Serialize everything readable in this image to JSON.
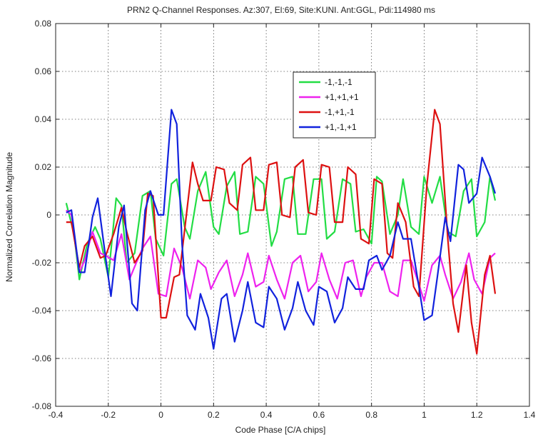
{
  "chart_data": {
    "type": "line",
    "title": "PRN2 Q-Channel Responses. Az:307, El:69, Site:KUNI. Ant:GGL, Pdi:114980 ms",
    "xlabel": "Code Phase [C/A chips]",
    "ylabel": "Normalized Correlation Magnitude",
    "xlim": [
      -0.4,
      1.4
    ],
    "ylim": [
      -0.08,
      0.08
    ],
    "xticks": [
      -0.4,
      -0.2,
      0,
      0.2,
      0.4,
      0.6,
      0.8,
      1,
      1.2,
      1.4
    ],
    "yticks": [
      -0.08,
      -0.06,
      -0.04,
      -0.02,
      0,
      0.02,
      0.04,
      0.06,
      0.08
    ],
    "xtick_labels": [
      "-0.4",
      "-0.2",
      "0",
      "0.2",
      "0.4",
      "0.6",
      "0.8",
      "1",
      "1.2",
      "1.4"
    ],
    "ytick_labels": [
      "-0.08",
      "-0.06",
      "-0.04",
      "-0.02",
      "0",
      "0.02",
      "0.04",
      "0.06",
      "0.08"
    ],
    "grid": true,
    "legend_position": "upper-center",
    "series": [
      {
        "name": "-1,-1,-1",
        "color": "#22dd44",
        "points": [
          [
            -0.36,
            0.005
          ],
          [
            -0.33,
            -0.008
          ],
          [
            -0.31,
            -0.027
          ],
          [
            -0.28,
            -0.012
          ],
          [
            -0.25,
            -0.005
          ],
          [
            -0.23,
            -0.01
          ],
          [
            -0.2,
            -0.026
          ],
          [
            -0.17,
            0.007
          ],
          [
            -0.15,
            0.004
          ],
          [
            -0.13,
            -0.02
          ],
          [
            -0.1,
            -0.016
          ],
          [
            -0.07,
            0.008
          ],
          [
            -0.04,
            0.01
          ],
          [
            -0.02,
            -0.01
          ],
          [
            0.01,
            -0.017
          ],
          [
            0.04,
            0.013
          ],
          [
            0.06,
            0.015
          ],
          [
            0.09,
            -0.005
          ],
          [
            0.11,
            -0.01
          ],
          [
            0.14,
            0.01
          ],
          [
            0.17,
            0.018
          ],
          [
            0.2,
            -0.005
          ],
          [
            0.22,
            -0.008
          ],
          [
            0.25,
            0.012
          ],
          [
            0.28,
            0.018
          ],
          [
            0.3,
            -0.008
          ],
          [
            0.33,
            -0.007
          ],
          [
            0.36,
            0.016
          ],
          [
            0.39,
            0.013
          ],
          [
            0.42,
            -0.013
          ],
          [
            0.44,
            -0.007
          ],
          [
            0.47,
            0.015
          ],
          [
            0.5,
            0.016
          ],
          [
            0.52,
            -0.008
          ],
          [
            0.55,
            -0.008
          ],
          [
            0.58,
            0.015
          ],
          [
            0.61,
            0.015
          ],
          [
            0.63,
            -0.01
          ],
          [
            0.66,
            -0.007
          ],
          [
            0.69,
            0.015
          ],
          [
            0.72,
            0.013
          ],
          [
            0.74,
            -0.007
          ],
          [
            0.77,
            -0.006
          ],
          [
            0.8,
            -0.012
          ],
          [
            0.82,
            0.016
          ],
          [
            0.84,
            0.014
          ],
          [
            0.87,
            -0.008
          ],
          [
            0.9,
            0.0
          ],
          [
            0.92,
            0.015
          ],
          [
            0.95,
            -0.005
          ],
          [
            0.98,
            -0.008
          ],
          [
            1.0,
            0.016
          ],
          [
            1.03,
            0.005
          ],
          [
            1.06,
            0.016
          ],
          [
            1.09,
            -0.007
          ],
          [
            1.12,
            -0.009
          ],
          [
            1.15,
            0.01
          ],
          [
            1.18,
            0.015
          ],
          [
            1.2,
            -0.009
          ],
          [
            1.23,
            -0.003
          ],
          [
            1.25,
            0.016
          ],
          [
            1.27,
            0.006
          ]
        ]
      },
      {
        "name": "+1,+1,+1",
        "color": "#ee22ee",
        "points": [
          [
            -0.36,
            0.002
          ],
          [
            -0.34,
            0.0
          ],
          [
            -0.31,
            -0.024
          ],
          [
            -0.29,
            -0.019
          ],
          [
            -0.26,
            -0.007
          ],
          [
            -0.23,
            -0.016
          ],
          [
            -0.21,
            -0.017
          ],
          [
            -0.18,
            -0.019
          ],
          [
            -0.15,
            -0.008
          ],
          [
            -0.12,
            -0.027
          ],
          [
            -0.09,
            -0.019
          ],
          [
            -0.07,
            -0.014
          ],
          [
            -0.04,
            -0.009
          ],
          [
            -0.01,
            -0.033
          ],
          [
            0.02,
            -0.034
          ],
          [
            0.05,
            -0.014
          ],
          [
            0.08,
            -0.022
          ],
          [
            0.11,
            -0.035
          ],
          [
            0.14,
            -0.019
          ],
          [
            0.17,
            -0.022
          ],
          [
            0.19,
            -0.031
          ],
          [
            0.22,
            -0.024
          ],
          [
            0.25,
            -0.019
          ],
          [
            0.28,
            -0.034
          ],
          [
            0.31,
            -0.025
          ],
          [
            0.33,
            -0.016
          ],
          [
            0.36,
            -0.03
          ],
          [
            0.39,
            -0.028
          ],
          [
            0.41,
            -0.017
          ],
          [
            0.44,
            -0.027
          ],
          [
            0.47,
            -0.035
          ],
          [
            0.5,
            -0.02
          ],
          [
            0.53,
            -0.017
          ],
          [
            0.56,
            -0.032
          ],
          [
            0.59,
            -0.028
          ],
          [
            0.61,
            -0.016
          ],
          [
            0.64,
            -0.027
          ],
          [
            0.67,
            -0.035
          ],
          [
            0.7,
            -0.02
          ],
          [
            0.73,
            -0.019
          ],
          [
            0.76,
            -0.034
          ],
          [
            0.78,
            -0.026
          ],
          [
            0.81,
            -0.02
          ],
          [
            0.84,
            -0.02
          ],
          [
            0.87,
            -0.032
          ],
          [
            0.9,
            -0.034
          ],
          [
            0.92,
            -0.019
          ],
          [
            0.95,
            -0.019
          ],
          [
            0.98,
            -0.029
          ],
          [
            1.0,
            -0.036
          ],
          [
            1.03,
            -0.021
          ],
          [
            1.06,
            -0.017
          ],
          [
            1.08,
            -0.025
          ],
          [
            1.11,
            -0.035
          ],
          [
            1.14,
            -0.028
          ],
          [
            1.17,
            -0.016
          ],
          [
            1.19,
            -0.027
          ],
          [
            1.22,
            -0.033
          ],
          [
            1.25,
            -0.018
          ],
          [
            1.27,
            -0.016
          ]
        ]
      },
      {
        "name": "-1,+1,-1",
        "color": "#dd1111",
        "points": [
          [
            -0.36,
            -0.003
          ],
          [
            -0.34,
            -0.003
          ],
          [
            -0.31,
            -0.022
          ],
          [
            -0.29,
            -0.013
          ],
          [
            -0.26,
            -0.009
          ],
          [
            -0.23,
            -0.018
          ],
          [
            -0.21,
            -0.017
          ],
          [
            -0.18,
            -0.008
          ],
          [
            -0.15,
            0.003
          ],
          [
            -0.13,
            -0.007
          ],
          [
            -0.1,
            -0.02
          ],
          [
            -0.07,
            -0.015
          ],
          [
            -0.05,
            0.009
          ],
          [
            -0.03,
            0.008
          ],
          [
            0.0,
            -0.043
          ],
          [
            0.02,
            -0.043
          ],
          [
            0.05,
            -0.026
          ],
          [
            0.07,
            -0.025
          ],
          [
            0.1,
            0.003
          ],
          [
            0.12,
            0.022
          ],
          [
            0.14,
            0.013
          ],
          [
            0.16,
            0.006
          ],
          [
            0.19,
            0.006
          ],
          [
            0.21,
            0.02
          ],
          [
            0.24,
            0.019
          ],
          [
            0.26,
            0.005
          ],
          [
            0.29,
            0.002
          ],
          [
            0.31,
            0.021
          ],
          [
            0.34,
            0.024
          ],
          [
            0.36,
            0.002
          ],
          [
            0.39,
            0.002
          ],
          [
            0.41,
            0.021
          ],
          [
            0.44,
            0.022
          ],
          [
            0.46,
            0.0
          ],
          [
            0.49,
            -0.001
          ],
          [
            0.51,
            0.02
          ],
          [
            0.54,
            0.023
          ],
          [
            0.56,
            0.001
          ],
          [
            0.59,
            0.0
          ],
          [
            0.61,
            0.021
          ],
          [
            0.64,
            0.02
          ],
          [
            0.66,
            -0.003
          ],
          [
            0.69,
            -0.003
          ],
          [
            0.71,
            0.02
          ],
          [
            0.74,
            0.017
          ],
          [
            0.76,
            -0.01
          ],
          [
            0.79,
            -0.012
          ],
          [
            0.81,
            0.015
          ],
          [
            0.84,
            0.013
          ],
          [
            0.86,
            -0.016
          ],
          [
            0.88,
            -0.018
          ],
          [
            0.9,
            0.005
          ],
          [
            0.93,
            -0.003
          ],
          [
            0.96,
            -0.03
          ],
          [
            0.98,
            -0.034
          ],
          [
            1.01,
            0.012
          ],
          [
            1.04,
            0.044
          ],
          [
            1.06,
            0.038
          ],
          [
            1.09,
            -0.01
          ],
          [
            1.11,
            -0.037
          ],
          [
            1.13,
            -0.049
          ],
          [
            1.16,
            -0.021
          ],
          [
            1.18,
            -0.045
          ],
          [
            1.2,
            -0.058
          ],
          [
            1.23,
            -0.025
          ],
          [
            1.25,
            -0.017
          ],
          [
            1.27,
            -0.033
          ]
        ]
      },
      {
        "name": "+1,-1,+1",
        "color": "#1122dd",
        "points": [
          [
            -0.36,
            0.001
          ],
          [
            -0.34,
            0.002
          ],
          [
            -0.31,
            -0.024
          ],
          [
            -0.29,
            -0.024
          ],
          [
            -0.26,
            -0.001
          ],
          [
            -0.24,
            0.007
          ],
          [
            -0.21,
            -0.018
          ],
          [
            -0.19,
            -0.034
          ],
          [
            -0.16,
            -0.005
          ],
          [
            -0.14,
            0.004
          ],
          [
            -0.11,
            -0.037
          ],
          [
            -0.09,
            -0.04
          ],
          [
            -0.06,
            0.002
          ],
          [
            -0.04,
            0.01
          ],
          [
            -0.01,
            0.0
          ],
          [
            0.01,
            0.0
          ],
          [
            0.04,
            0.044
          ],
          [
            0.06,
            0.038
          ],
          [
            0.08,
            -0.012
          ],
          [
            0.1,
            -0.042
          ],
          [
            0.13,
            -0.048
          ],
          [
            0.15,
            -0.033
          ],
          [
            0.18,
            -0.043
          ],
          [
            0.2,
            -0.056
          ],
          [
            0.23,
            -0.035
          ],
          [
            0.25,
            -0.033
          ],
          [
            0.28,
            -0.053
          ],
          [
            0.31,
            -0.04
          ],
          [
            0.33,
            -0.028
          ],
          [
            0.36,
            -0.045
          ],
          [
            0.39,
            -0.047
          ],
          [
            0.41,
            -0.03
          ],
          [
            0.44,
            -0.035
          ],
          [
            0.47,
            -0.048
          ],
          [
            0.5,
            -0.039
          ],
          [
            0.52,
            -0.028
          ],
          [
            0.55,
            -0.04
          ],
          [
            0.58,
            -0.046
          ],
          [
            0.6,
            -0.03
          ],
          [
            0.63,
            -0.032
          ],
          [
            0.66,
            -0.045
          ],
          [
            0.69,
            -0.039
          ],
          [
            0.71,
            -0.026
          ],
          [
            0.74,
            -0.031
          ],
          [
            0.77,
            -0.031
          ],
          [
            0.79,
            -0.019
          ],
          [
            0.82,
            -0.017
          ],
          [
            0.84,
            -0.023
          ],
          [
            0.87,
            -0.017
          ],
          [
            0.9,
            -0.003
          ],
          [
            0.92,
            -0.01
          ],
          [
            0.95,
            -0.01
          ],
          [
            0.98,
            -0.03
          ],
          [
            1.0,
            -0.044
          ],
          [
            1.03,
            -0.042
          ],
          [
            1.05,
            -0.026
          ],
          [
            1.08,
            -0.001
          ],
          [
            1.1,
            -0.011
          ],
          [
            1.13,
            0.021
          ],
          [
            1.15,
            0.019
          ],
          [
            1.17,
            0.005
          ],
          [
            1.2,
            0.009
          ],
          [
            1.22,
            0.024
          ],
          [
            1.25,
            0.016
          ],
          [
            1.27,
            0.009
          ]
        ]
      }
    ]
  }
}
